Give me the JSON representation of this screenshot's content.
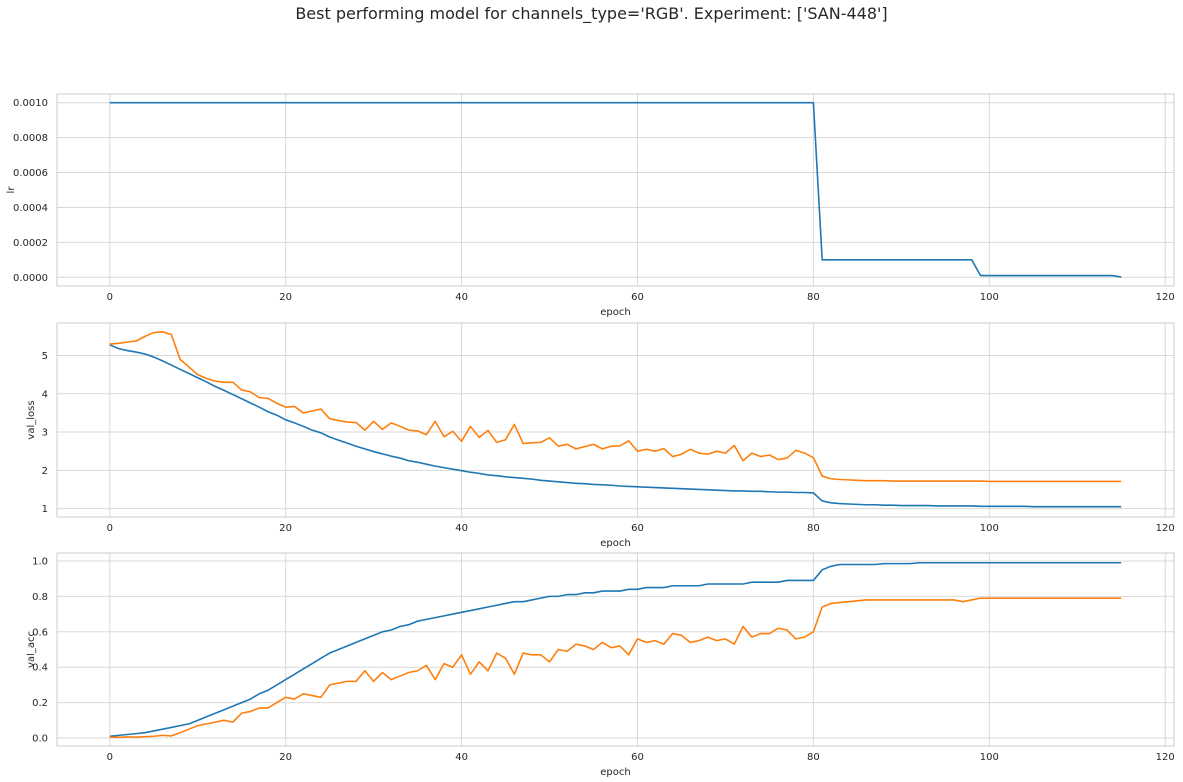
{
  "figure": {
    "suptitle": "Best performing model for channels_type='RGB'. Experiment: ['SAN-448']"
  },
  "colors": {
    "series_blue": "#1f77b4",
    "series_orange": "#ff7f0e",
    "grid": "#d9d9d9",
    "axes_edge": "#cccccc",
    "background": "#ffffff"
  },
  "chart_data": [
    {
      "type": "line",
      "xlabel": "epoch",
      "ylabel": "lr",
      "xlim": [
        -6,
        121
      ],
      "ylim": [
        -5e-05,
        0.00105
      ],
      "xticks": [
        0,
        20,
        40,
        60,
        80,
        100,
        120
      ],
      "yticks": [
        0.0,
        0.0002,
        0.0004,
        0.0006,
        0.0008,
        0.001
      ],
      "ytick_labels": [
        "0.0000",
        "0.0002",
        "0.0004",
        "0.0006",
        "0.0008",
        "0.0010"
      ],
      "grid": true,
      "series": [
        {
          "color": "#1f77b4",
          "segments": [
            [
              0,
              0.001,
              80,
              0.001
            ],
            [
              81,
              0.0001,
              98,
              0.0001
            ],
            [
              99,
              1e-05,
              114,
              1e-05
            ],
            [
              115,
              1e-06,
              115,
              1e-06
            ]
          ]
        }
      ]
    },
    {
      "type": "line",
      "xlabel": "epoch",
      "ylabel": "val_loss",
      "xlim": [
        -6,
        121
      ],
      "ylim": [
        0.78,
        5.85
      ],
      "xticks": [
        0,
        20,
        40,
        60,
        80,
        100,
        120
      ],
      "yticks": [
        1,
        2,
        3,
        4,
        5
      ],
      "ytick_labels": [
        "1",
        "2",
        "3",
        "4",
        "5"
      ],
      "grid": true,
      "series": [
        {
          "color": "#1f77b4",
          "values": [
            5.28,
            5.18,
            5.13,
            5.09,
            5.04,
            4.96,
            4.86,
            4.75,
            4.64,
            4.53,
            4.42,
            4.31,
            4.19,
            4.09,
            3.98,
            3.87,
            3.76,
            3.65,
            3.53,
            3.44,
            3.32,
            3.24,
            3.15,
            3.05,
            2.98,
            2.87,
            2.79,
            2.71,
            2.63,
            2.56,
            2.49,
            2.43,
            2.37,
            2.32,
            2.25,
            2.21,
            2.16,
            2.11,
            2.07,
            2.03,
            1.99,
            1.95,
            1.92,
            1.88,
            1.86,
            1.83,
            1.81,
            1.79,
            1.77,
            1.74,
            1.72,
            1.7,
            1.68,
            1.66,
            1.65,
            1.63,
            1.62,
            1.61,
            1.59,
            1.58,
            1.57,
            1.56,
            1.55,
            1.54,
            1.53,
            1.52,
            1.51,
            1.5,
            1.49,
            1.48,
            1.47,
            1.46,
            1.46,
            1.45,
            1.45,
            1.44,
            1.43,
            1.43,
            1.42,
            1.42,
            1.41,
            1.2,
            1.15,
            1.13,
            1.12,
            1.11,
            1.1,
            1.1,
            1.09,
            1.09,
            1.08,
            1.08,
            1.08,
            1.08,
            1.07,
            1.07,
            1.07,
            1.07,
            1.07,
            1.06,
            1.06,
            1.06,
            1.06,
            1.06,
            1.06,
            1.05,
            1.05,
            1.05,
            1.05,
            1.05,
            1.05,
            1.05,
            1.05,
            1.05,
            1.05,
            1.05
          ]
        },
        {
          "color": "#ff7f0e",
          "values": [
            5.3,
            5.32,
            5.35,
            5.38,
            5.5,
            5.6,
            5.62,
            5.55,
            4.9,
            4.7,
            4.5,
            4.4,
            4.33,
            4.3,
            4.3,
            4.1,
            4.05,
            3.9,
            3.88,
            3.75,
            3.65,
            3.67,
            3.5,
            3.55,
            3.6,
            3.35,
            3.3,
            3.26,
            3.25,
            3.05,
            3.28,
            3.07,
            3.24,
            3.15,
            3.05,
            3.03,
            2.93,
            3.28,
            2.88,
            3.02,
            2.76,
            3.15,
            2.86,
            3.04,
            2.73,
            2.8,
            3.2,
            2.7,
            2.72,
            2.73,
            2.85,
            2.63,
            2.68,
            2.56,
            2.62,
            2.68,
            2.56,
            2.63,
            2.64,
            2.77,
            2.5,
            2.55,
            2.5,
            2.57,
            2.36,
            2.42,
            2.55,
            2.45,
            2.42,
            2.5,
            2.45,
            2.65,
            2.25,
            2.45,
            2.36,
            2.4,
            2.28,
            2.32,
            2.52,
            2.45,
            2.33,
            1.85,
            1.78,
            1.76,
            1.75,
            1.74,
            1.73,
            1.73,
            1.73,
            1.72,
            1.72,
            1.72,
            1.72,
            1.72,
            1.72,
            1.72,
            1.72,
            1.72,
            1.72,
            1.72,
            1.71,
            1.71,
            1.71,
            1.71,
            1.71,
            1.71,
            1.71,
            1.71,
            1.71,
            1.71,
            1.71,
            1.71,
            1.71,
            1.71,
            1.71,
            1.71
          ]
        }
      ]
    },
    {
      "type": "line",
      "xlabel": "epoch",
      "ylabel": "val_acc",
      "xlim": [
        -6,
        121
      ],
      "ylim": [
        -0.045,
        1.045
      ],
      "xticks": [
        0,
        20,
        40,
        60,
        80,
        100,
        120
      ],
      "yticks": [
        0.0,
        0.2,
        0.4,
        0.6,
        0.8,
        1.0
      ],
      "ytick_labels": [
        "0.0",
        "0.2",
        "0.4",
        "0.6",
        "0.8",
        "1.0"
      ],
      "grid": true,
      "series": [
        {
          "color": "#1f77b4",
          "values": [
            0.01,
            0.015,
            0.02,
            0.025,
            0.03,
            0.04,
            0.05,
            0.06,
            0.07,
            0.08,
            0.1,
            0.12,
            0.14,
            0.16,
            0.18,
            0.2,
            0.22,
            0.25,
            0.27,
            0.3,
            0.33,
            0.36,
            0.39,
            0.42,
            0.45,
            0.48,
            0.5,
            0.52,
            0.54,
            0.56,
            0.58,
            0.6,
            0.61,
            0.63,
            0.64,
            0.66,
            0.67,
            0.68,
            0.69,
            0.7,
            0.71,
            0.72,
            0.73,
            0.74,
            0.75,
            0.76,
            0.77,
            0.77,
            0.78,
            0.79,
            0.8,
            0.8,
            0.81,
            0.81,
            0.82,
            0.82,
            0.83,
            0.83,
            0.83,
            0.84,
            0.84,
            0.85,
            0.85,
            0.85,
            0.86,
            0.86,
            0.86,
            0.86,
            0.87,
            0.87,
            0.87,
            0.87,
            0.87,
            0.88,
            0.88,
            0.88,
            0.88,
            0.89,
            0.89,
            0.89,
            0.89,
            0.95,
            0.97,
            0.98,
            0.98,
            0.98,
            0.98,
            0.98,
            0.985,
            0.985,
            0.985,
            0.985,
            0.99,
            0.99,
            0.99,
            0.99,
            0.99,
            0.99,
            0.99,
            0.99,
            0.99,
            0.99,
            0.99,
            0.99,
            0.99,
            0.99,
            0.99,
            0.99,
            0.99,
            0.99,
            0.99,
            0.99,
            0.99,
            0.99,
            0.99,
            0.99
          ]
        },
        {
          "color": "#ff7f0e",
          "values": [
            0.005,
            0.004,
            0.006,
            0.005,
            0.008,
            0.01,
            0.015,
            0.012,
            0.03,
            0.05,
            0.07,
            0.08,
            0.09,
            0.1,
            0.09,
            0.14,
            0.15,
            0.17,
            0.17,
            0.2,
            0.23,
            0.22,
            0.25,
            0.24,
            0.23,
            0.3,
            0.31,
            0.32,
            0.32,
            0.38,
            0.32,
            0.37,
            0.33,
            0.35,
            0.37,
            0.38,
            0.41,
            0.33,
            0.42,
            0.4,
            0.47,
            0.36,
            0.43,
            0.38,
            0.48,
            0.45,
            0.36,
            0.48,
            0.47,
            0.47,
            0.43,
            0.5,
            0.49,
            0.53,
            0.52,
            0.5,
            0.54,
            0.51,
            0.52,
            0.47,
            0.56,
            0.54,
            0.55,
            0.53,
            0.59,
            0.58,
            0.54,
            0.55,
            0.57,
            0.55,
            0.56,
            0.53,
            0.63,
            0.57,
            0.59,
            0.59,
            0.62,
            0.61,
            0.56,
            0.57,
            0.6,
            0.74,
            0.76,
            0.765,
            0.77,
            0.775,
            0.78,
            0.78,
            0.78,
            0.78,
            0.78,
            0.78,
            0.78,
            0.78,
            0.78,
            0.78,
            0.78,
            0.77,
            0.78,
            0.79,
            0.79,
            0.79,
            0.79,
            0.79,
            0.79,
            0.79,
            0.79,
            0.79,
            0.79,
            0.79,
            0.79,
            0.79,
            0.79,
            0.79,
            0.79,
            0.79
          ]
        }
      ]
    }
  ]
}
